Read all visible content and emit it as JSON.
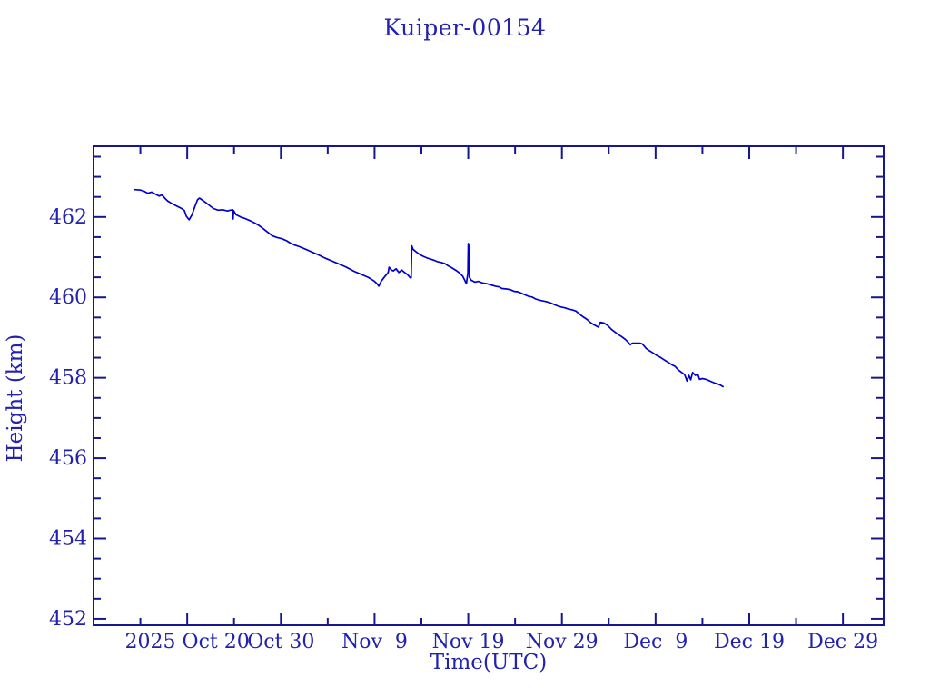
{
  "chart_data": {
    "type": "line",
    "title": "Kuiper-00154",
    "xlabel": "Time(UTC)",
    "ylabel": "Height (km)",
    "x_unit": "days since 2025 Oct 10 00:00 UTC",
    "xlim": [
      0,
      84.35
    ],
    "ylim": [
      451.84,
      463.76
    ],
    "grid": false,
    "legend": "none",
    "axis_color": "#16168E",
    "text_color": "#2222AE",
    "line_color": "#0000CD",
    "background": "#FFFFFF",
    "x_major_ticks": [
      {
        "day": 10,
        "label": "2025 Oct 20"
      },
      {
        "day": 20,
        "label": "Oct 30"
      },
      {
        "day": 30,
        "label": "Nov  9"
      },
      {
        "day": 40,
        "label": "Nov 19"
      },
      {
        "day": 50,
        "label": "Nov 29"
      },
      {
        "day": 60,
        "label": "Dec  9"
      },
      {
        "day": 70,
        "label": "Dec 19"
      },
      {
        "day": 80,
        "label": "Dec 29"
      }
    ],
    "x_minor_ticks": [
      5,
      15,
      25,
      35,
      45,
      55,
      65,
      75
    ],
    "y_major_ticks": [
      {
        "km": 452,
        "label": "452"
      },
      {
        "km": 454,
        "label": "454"
      },
      {
        "km": 456,
        "label": "456"
      },
      {
        "km": 458,
        "label": "458"
      },
      {
        "km": 460,
        "label": "460"
      },
      {
        "km": 462,
        "label": "462"
      }
    ],
    "y_minor_step": 0.5,
    "series": [
      {
        "name": "height",
        "points": [
          [
            4.4,
            462.68
          ],
          [
            5.0,
            462.67
          ],
          [
            5.4,
            462.64
          ],
          [
            5.8,
            462.59
          ],
          [
            6.2,
            462.62
          ],
          [
            6.6,
            462.57
          ],
          [
            7.0,
            462.52
          ],
          [
            7.3,
            462.55
          ],
          [
            7.6,
            462.47
          ],
          [
            7.9,
            462.4
          ],
          [
            8.4,
            462.33
          ],
          [
            8.9,
            462.27
          ],
          [
            9.4,
            462.21
          ],
          [
            9.7,
            462.16
          ],
          [
            9.9,
            462.02
          ],
          [
            10.2,
            461.93
          ],
          [
            10.5,
            462.05
          ],
          [
            10.8,
            462.25
          ],
          [
            11.1,
            462.43
          ],
          [
            11.3,
            462.47
          ],
          [
            11.8,
            462.39
          ],
          [
            12.3,
            462.3
          ],
          [
            12.8,
            462.21
          ],
          [
            13.3,
            462.17
          ],
          [
            13.8,
            462.18
          ],
          [
            14.3,
            462.15
          ],
          [
            14.6,
            462.17
          ],
          [
            14.85,
            462.18
          ],
          [
            14.9,
            461.95
          ],
          [
            14.95,
            462.16
          ],
          [
            15.2,
            462.06
          ],
          [
            15.7,
            462.0
          ],
          [
            16.2,
            461.96
          ],
          [
            16.7,
            461.91
          ],
          [
            17.2,
            461.85
          ],
          [
            17.6,
            461.8
          ],
          [
            18.1,
            461.71
          ],
          [
            18.6,
            461.62
          ],
          [
            19.1,
            461.53
          ],
          [
            19.6,
            461.49
          ],
          [
            20.1,
            461.46
          ],
          [
            20.6,
            461.41
          ],
          [
            21.0,
            461.35
          ],
          [
            21.5,
            461.3
          ],
          [
            22.0,
            461.26
          ],
          [
            22.5,
            461.21
          ],
          [
            23.0,
            461.16
          ],
          [
            23.5,
            461.11
          ],
          [
            24.0,
            461.06
          ],
          [
            24.5,
            461.0
          ],
          [
            24.9,
            460.96
          ],
          [
            25.4,
            460.91
          ],
          [
            25.9,
            460.86
          ],
          [
            26.4,
            460.81
          ],
          [
            26.9,
            460.76
          ],
          [
            27.3,
            460.71
          ],
          [
            27.8,
            460.65
          ],
          [
            28.3,
            460.6
          ],
          [
            28.8,
            460.55
          ],
          [
            29.3,
            460.5
          ],
          [
            29.6,
            460.46
          ],
          [
            30.0,
            460.4
          ],
          [
            30.3,
            460.33
          ],
          [
            30.45,
            460.28
          ],
          [
            30.7,
            460.4
          ],
          [
            31.1,
            460.52
          ],
          [
            31.45,
            460.62
          ],
          [
            31.55,
            460.75
          ],
          [
            31.8,
            460.68
          ],
          [
            32.0,
            460.66
          ],
          [
            32.3,
            460.71
          ],
          [
            32.6,
            460.62
          ],
          [
            32.9,
            460.68
          ],
          [
            33.2,
            460.62
          ],
          [
            33.5,
            460.57
          ],
          [
            33.65,
            460.53
          ],
          [
            33.8,
            460.49
          ],
          [
            33.9,
            460.49
          ],
          [
            33.97,
            461.28
          ],
          [
            34.1,
            461.2
          ],
          [
            34.4,
            461.14
          ],
          [
            34.8,
            461.07
          ],
          [
            35.2,
            461.02
          ],
          [
            35.6,
            460.98
          ],
          [
            36.0,
            460.95
          ],
          [
            36.4,
            460.92
          ],
          [
            36.7,
            460.89
          ],
          [
            37.1,
            460.87
          ],
          [
            37.5,
            460.84
          ],
          [
            37.9,
            460.78
          ],
          [
            38.3,
            460.73
          ],
          [
            38.7,
            460.67
          ],
          [
            39.1,
            460.6
          ],
          [
            39.4,
            460.53
          ],
          [
            39.6,
            460.44
          ],
          [
            39.8,
            460.34
          ],
          [
            39.95,
            460.6
          ],
          [
            40.0,
            461.34
          ],
          [
            40.05,
            461.3
          ],
          [
            40.12,
            460.5
          ],
          [
            40.3,
            460.43
          ],
          [
            40.7,
            460.38
          ],
          [
            41.1,
            460.4
          ],
          [
            41.5,
            460.36
          ],
          [
            42.0,
            460.34
          ],
          [
            42.4,
            460.31
          ],
          [
            42.9,
            460.28
          ],
          [
            43.3,
            460.26
          ],
          [
            43.6,
            460.22
          ],
          [
            44.1,
            460.21
          ],
          [
            44.5,
            460.19
          ],
          [
            44.9,
            460.15
          ],
          [
            45.3,
            460.14
          ],
          [
            45.7,
            460.1
          ],
          [
            46.1,
            460.06
          ],
          [
            46.4,
            460.03
          ],
          [
            46.8,
            460.01
          ],
          [
            47.2,
            459.96
          ],
          [
            47.6,
            459.93
          ],
          [
            48.0,
            459.91
          ],
          [
            48.4,
            459.89
          ],
          [
            48.8,
            459.86
          ],
          [
            49.2,
            459.82
          ],
          [
            49.5,
            459.79
          ],
          [
            49.9,
            459.76
          ],
          [
            50.3,
            459.74
          ],
          [
            50.7,
            459.71
          ],
          [
            51.1,
            459.69
          ],
          [
            51.5,
            459.66
          ],
          [
            51.9,
            459.58
          ],
          [
            52.3,
            459.51
          ],
          [
            52.7,
            459.45
          ],
          [
            53.0,
            459.38
          ],
          [
            53.4,
            459.32
          ],
          [
            53.9,
            459.26
          ],
          [
            54.1,
            459.38
          ],
          [
            54.5,
            459.36
          ],
          [
            54.9,
            459.3
          ],
          [
            55.3,
            459.2
          ],
          [
            55.7,
            459.13
          ],
          [
            56.0,
            459.08
          ],
          [
            56.4,
            459.02
          ],
          [
            56.8,
            458.95
          ],
          [
            57.1,
            458.88
          ],
          [
            57.3,
            458.82
          ],
          [
            57.5,
            458.86
          ],
          [
            58.3,
            458.86
          ],
          [
            58.6,
            458.84
          ],
          [
            59.0,
            458.73
          ],
          [
            59.3,
            458.68
          ],
          [
            59.7,
            458.62
          ],
          [
            60.1,
            458.56
          ],
          [
            60.5,
            458.51
          ],
          [
            60.9,
            458.45
          ],
          [
            61.3,
            458.39
          ],
          [
            61.7,
            458.33
          ],
          [
            62.1,
            458.28
          ],
          [
            62.4,
            458.2
          ],
          [
            62.8,
            458.13
          ],
          [
            63.1,
            458.08
          ],
          [
            63.35,
            457.92
          ],
          [
            63.55,
            458.06
          ],
          [
            63.75,
            457.95
          ],
          [
            63.95,
            458.13
          ],
          [
            64.25,
            458.06
          ],
          [
            64.5,
            458.09
          ],
          [
            64.7,
            457.96
          ],
          [
            65.0,
            457.98
          ],
          [
            65.4,
            457.96
          ],
          [
            65.6,
            457.94
          ],
          [
            66.0,
            457.9
          ],
          [
            66.3,
            457.87
          ],
          [
            66.6,
            457.85
          ],
          [
            66.9,
            457.82
          ],
          [
            67.2,
            457.78
          ]
        ]
      }
    ]
  }
}
